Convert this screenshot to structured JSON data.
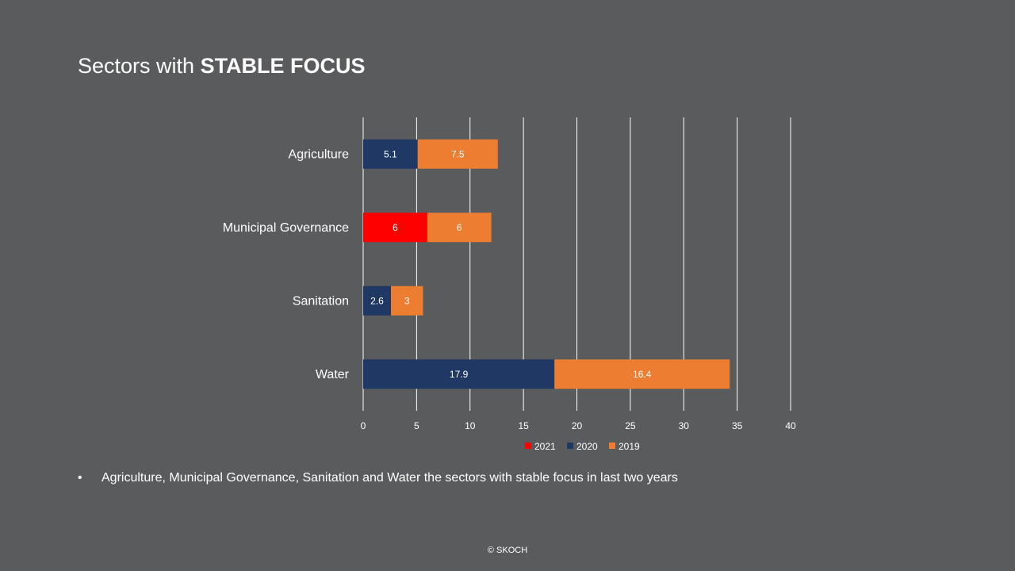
{
  "slide": {
    "title_regular": "Sectors with ",
    "title_bold": "STABLE FOCUS",
    "bullet_symbol": "•",
    "bullet_text": "Agriculture, Municipal Governance, Sanitation and Water the sectors with stable focus in last two years",
    "copyright": "© SKOCH"
  },
  "chart_data": {
    "type": "bar",
    "orientation": "horizontal",
    "stacked": true,
    "categories": [
      "Agriculture",
      "Municipal Governance",
      "Sanitation",
      "Water"
    ],
    "series": [
      {
        "name": "2021",
        "color": "#ff0000",
        "values": [
          null,
          6,
          null,
          null
        ]
      },
      {
        "name": "2020",
        "color": "#203864",
        "values": [
          5.1,
          null,
          2.6,
          17.9
        ]
      },
      {
        "name": "2019",
        "color": "#ed7d31",
        "values": [
          7.5,
          6,
          3,
          16.4
        ]
      }
    ],
    "xlim": [
      0,
      40
    ],
    "xticks": [
      0,
      5,
      10,
      15,
      20,
      25,
      30,
      35,
      40
    ],
    "grid": "vertical",
    "legend": "bottom",
    "data_labels": true
  }
}
